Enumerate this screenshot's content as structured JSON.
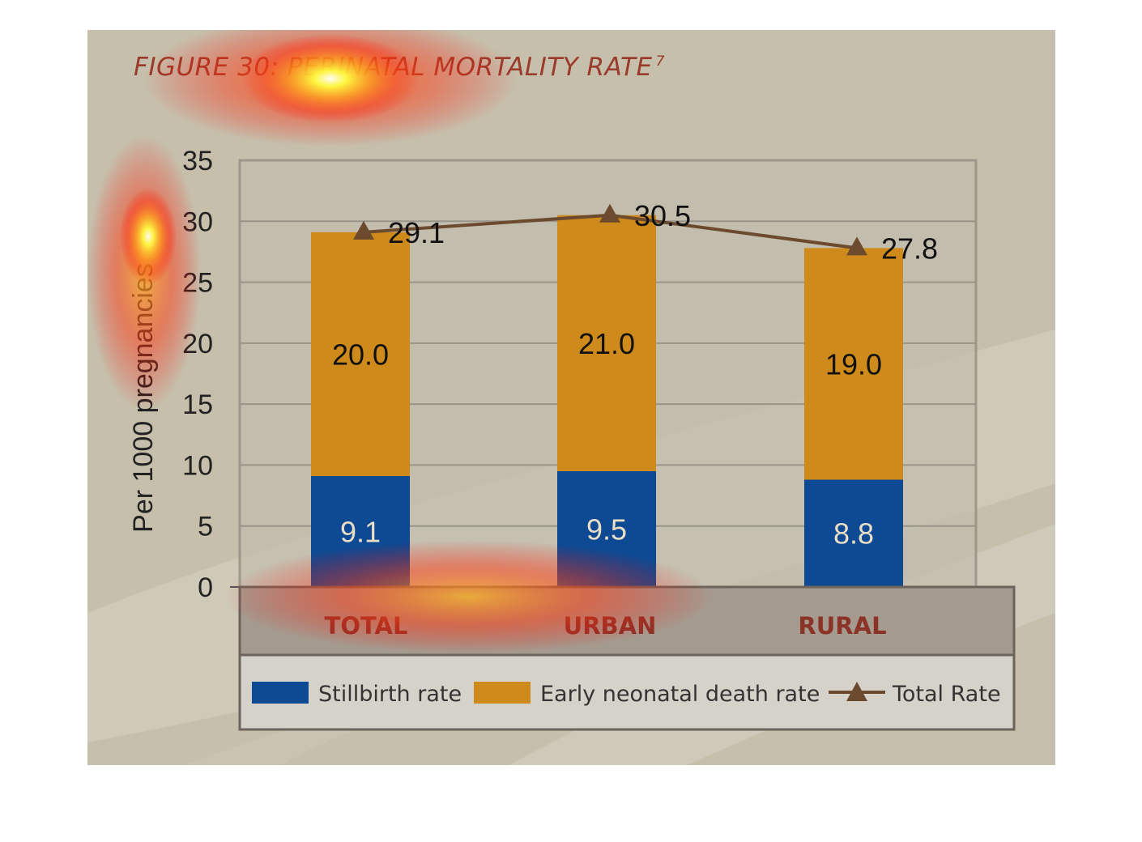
{
  "figure": {
    "title": "FIGURE 30: PERINATAL MORTALITY RATE",
    "title_sup": "7"
  },
  "colors": {
    "stillbirth": "#0d4a93",
    "early_neonatal": "#cf8a1c",
    "total_line": "#6b4a2e",
    "category_label": "#8c3328",
    "background": "#c6bfab",
    "plot_area": "#c2bdae",
    "category_band": "#a59a8e",
    "legend_band": "#d5d2ca"
  },
  "chart_data": {
    "type": "bar",
    "stacked": true,
    "categories": [
      "TOTAL",
      "URBAN",
      "RURAL"
    ],
    "series": [
      {
        "name": "Stillbirth rate",
        "values": [
          9.1,
          9.5,
          8.8
        ],
        "labels": [
          "9.1",
          "9.5",
          "8.8"
        ]
      },
      {
        "name": "Early neonatal death rate",
        "values": [
          20.0,
          21.0,
          19.0
        ],
        "labels": [
          "20.0",
          "21.0",
          "19.0"
        ]
      },
      {
        "name": "Total Rate",
        "type": "line",
        "marker": "triangle",
        "values": [
          29.1,
          30.5,
          27.8
        ],
        "labels": [
          "29.1",
          "30.5",
          "27.8"
        ]
      }
    ],
    "ylabel": "Per 1000 pregnancies",
    "ylim": [
      0,
      35
    ],
    "yticks": [
      0,
      5,
      10,
      15,
      20,
      25,
      30,
      35
    ],
    "grid": true,
    "legend_position": "bottom"
  }
}
